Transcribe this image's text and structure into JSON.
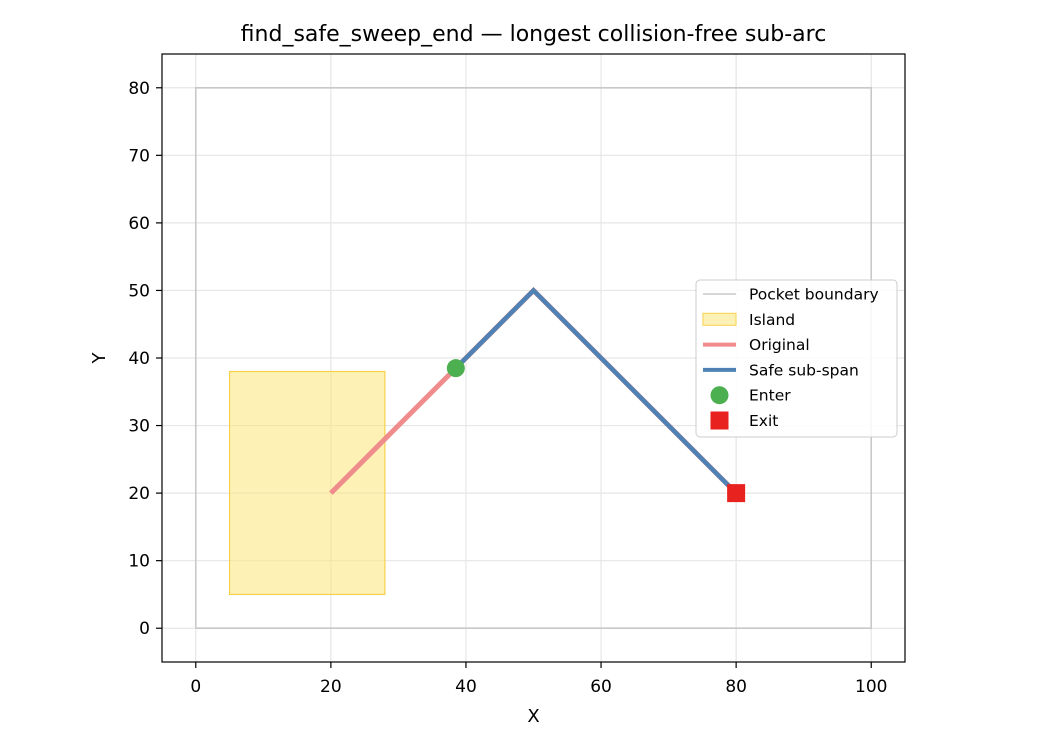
{
  "chart_data": {
    "type": "line",
    "title": "find_safe_sweep_end — longest collision-free sub-arc",
    "xlabel": "X",
    "ylabel": "Y",
    "xlim": [
      -5,
      105
    ],
    "ylim": [
      -5,
      85
    ],
    "xticks": [
      0,
      20,
      40,
      60,
      80,
      100
    ],
    "yticks": [
      0,
      10,
      20,
      30,
      40,
      50,
      60,
      70,
      80
    ],
    "grid": true,
    "legend_position": "center-right",
    "series": [
      {
        "name": "Pocket boundary",
        "kind": "line",
        "color": "#c8c8c8",
        "points": [
          [
            0,
            0
          ],
          [
            100,
            0
          ],
          [
            100,
            80
          ],
          [
            0,
            80
          ],
          [
            0,
            0
          ]
        ]
      },
      {
        "name": "Island",
        "kind": "filled-rectangle",
        "color": "#fde67a",
        "x_range": [
          5,
          28
        ],
        "y_range": [
          5,
          38
        ]
      },
      {
        "name": "Original",
        "kind": "line",
        "color": "#f08c8c",
        "points": [
          [
            20,
            20
          ],
          [
            50,
            50
          ],
          [
            80,
            20
          ]
        ]
      },
      {
        "name": "Safe sub-span",
        "kind": "line",
        "color": "#4e82b4",
        "points": [
          [
            38.5,
            38.5
          ],
          [
            50,
            50
          ],
          [
            80,
            20
          ]
        ]
      },
      {
        "name": "Enter",
        "kind": "marker-circle",
        "color": "#4caf50",
        "points": [
          [
            38.5,
            38.5
          ]
        ]
      },
      {
        "name": "Exit",
        "kind": "marker-square",
        "color": "#e8231f",
        "points": [
          [
            80,
            20
          ]
        ]
      }
    ]
  }
}
